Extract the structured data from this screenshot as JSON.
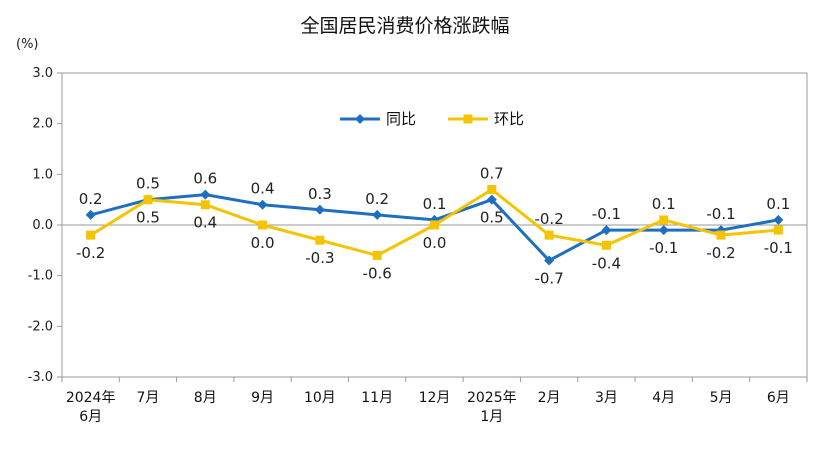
{
  "chart_data": {
    "type": "line",
    "title": "全国居民消费价格涨跌幅",
    "unit_label": "(%)",
    "categories": [
      [
        "2024年",
        "6月"
      ],
      [
        "7月"
      ],
      [
        "8月"
      ],
      [
        "9月"
      ],
      [
        "10月"
      ],
      [
        "11月"
      ],
      [
        "12月"
      ],
      [
        "2025年",
        "1月"
      ],
      [
        "2月"
      ],
      [
        "3月"
      ],
      [
        "4月"
      ],
      [
        "5月"
      ],
      [
        "6月"
      ]
    ],
    "ylim": [
      -3.0,
      3.0
    ],
    "yticks": [
      3.0,
      2.0,
      1.0,
      0.0,
      -1.0,
      -2.0,
      -3.0
    ],
    "ytick_labels": [
      "3.0",
      "2.0",
      "1.0",
      "0.0",
      "-1.0",
      "-2.0",
      "-3.0"
    ],
    "legend_position": "top-center",
    "series": [
      {
        "name": "同比",
        "color": "#1f6fc1",
        "marker": "diamond",
        "values": [
          0.2,
          0.5,
          0.6,
          0.4,
          0.3,
          0.2,
          0.1,
          0.5,
          -0.7,
          -0.1,
          -0.1,
          -0.1,
          0.1
        ],
        "labels": [
          "0.2",
          "0.5",
          "0.6",
          "0.4",
          "0.3",
          "0.2",
          "0.1",
          "0.5",
          "-0.7",
          "-0.1",
          "-0.1",
          "-0.1",
          "0.1"
        ],
        "label_side": [
          "above",
          "above",
          "above",
          "above",
          "above",
          "above",
          "above",
          "below",
          "below",
          "above",
          "below",
          "above",
          "above"
        ]
      },
      {
        "name": "环比",
        "color": "#f5c400",
        "marker": "square",
        "values": [
          -0.2,
          0.5,
          0.4,
          0.0,
          -0.3,
          -0.6,
          0.0,
          0.7,
          -0.2,
          -0.4,
          0.1,
          -0.2,
          -0.1
        ],
        "labels": [
          "-0.2",
          "0.5",
          "0.4",
          "0.0",
          "-0.3",
          "-0.6",
          "0.0",
          "0.7",
          "-0.2",
          "-0.4",
          "0.1",
          "-0.2",
          "-0.1"
        ],
        "label_side": [
          "below",
          "below",
          "below",
          "below",
          "below",
          "below",
          "below",
          "above",
          "above",
          "below",
          "above",
          "below",
          "below"
        ]
      }
    ]
  }
}
